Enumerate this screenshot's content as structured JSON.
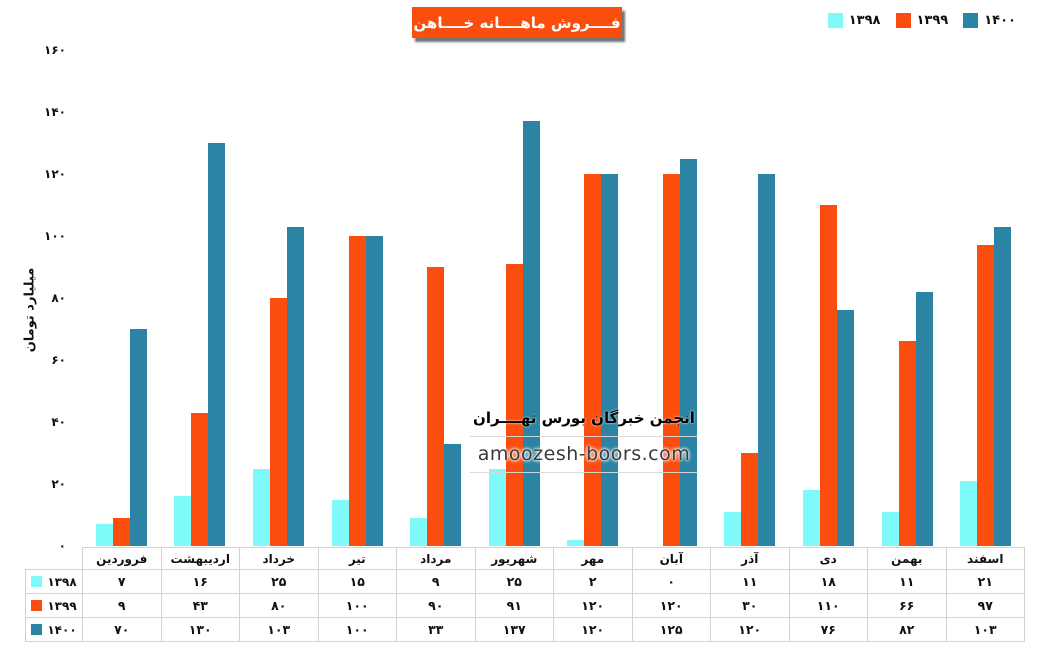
{
  "chart_data": {
    "type": "bar",
    "title": "فــــروش ماهــــانه خــــاهن",
    "title_bg_color": "#FB4E0E",
    "title_text_color": "#FFFFFF",
    "ylabel": "میلیارد تومان",
    "ylim": [
      0,
      160
    ],
    "ytick_values": [
      0,
      20,
      40,
      60,
      80,
      100,
      120,
      140,
      160
    ],
    "ytick_labels": [
      "۰",
      "۲۰",
      "۴۰",
      "۶۰",
      "۸۰",
      "۱۰۰",
      "۱۲۰",
      "۱۴۰",
      "۱۶۰"
    ],
    "grid": false,
    "legend_position": "top-right",
    "data_table_with_legend_keys": true,
    "categories": [
      "فروردین",
      "اردیبهشت",
      "خرداد",
      "تیر",
      "مرداد",
      "شهریور",
      "مهر",
      "آبان",
      "آذر",
      "دی",
      "بهمن",
      "اسفند"
    ],
    "series": [
      {
        "name": "۱۳۹۸",
        "color": "#7EFAFA",
        "values": [
          7,
          16,
          25,
          15,
          9,
          25,
          2,
          0,
          11,
          18,
          11,
          21
        ],
        "values_fa": [
          "۷",
          "۱۶",
          "۲۵",
          "۱۵",
          "۹",
          "۲۵",
          "۲",
          "۰",
          "۱۱",
          "۱۸",
          "۱۱",
          "۲۱"
        ]
      },
      {
        "name": "۱۳۹۹",
        "color": "#FB4E0E",
        "values": [
          9,
          43,
          80,
          100,
          90,
          91,
          120,
          120,
          30,
          110,
          66,
          97
        ],
        "values_fa": [
          "۹",
          "۴۳",
          "۸۰",
          "۱۰۰",
          "۹۰",
          "۹۱",
          "۱۲۰",
          "۱۲۰",
          "۳۰",
          "۱۱۰",
          "۶۶",
          "۹۷"
        ]
      },
      {
        "name": "۱۴۰۰",
        "color": "#2B84A4",
        "values": [
          70,
          130,
          103,
          100,
          33,
          137,
          120,
          125,
          120,
          76,
          82,
          103
        ],
        "values_fa": [
          "۷۰",
          "۱۳۰",
          "۱۰۳",
          "۱۰۰",
          "۳۳",
          "۱۳۷",
          "۱۲۰",
          "۱۲۵",
          "۱۲۰",
          "۷۶",
          "۸۲",
          "۱۰۳"
        ]
      }
    ]
  },
  "watermark": {
    "line1": "انجمن خبرگان بورس تهــــران",
    "line2": "amoozesh-boors.com"
  }
}
